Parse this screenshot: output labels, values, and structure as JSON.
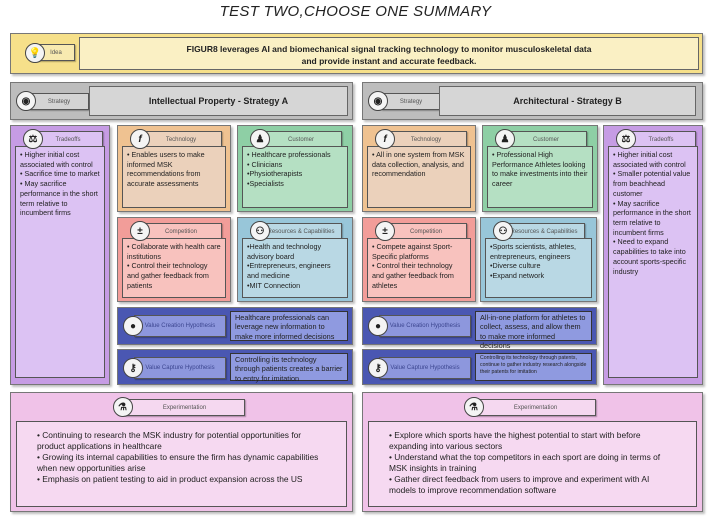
{
  "title": "TEST TWO,CHOOSE ONE SUMMARY",
  "idea": {
    "label": "Idea",
    "text": "FIGUR8 leverages AI and biomechanical signal tracking technology to monitor musculoskeletal data\nand provide instant and accurate feedback."
  },
  "strategy_a": {
    "label": "Strategy",
    "title": "Intellectual Property - Strategy A",
    "tradeoffs": {
      "label": "Tradeoffs",
      "text": "• Higher initial cost associated with control\n• Sacrifice time to market\n• May sacrifice performance in the short term relative to incumbent firms"
    },
    "technology": {
      "label": "Technology",
      "text": "• Enables users to make informed MSK recommendations from accurate assessments"
    },
    "customer": {
      "label": "Customer",
      "text": "• Healthcare professionals\n• Clinicians\n•Physiotherapists\n•Specialists"
    },
    "competition": {
      "label": "Competition",
      "text": "• Collaborate with health care institutions\n• Control their technology and gather feedback from patients"
    },
    "resources": {
      "label": "Resources & Capabilities",
      "text": "•Health and technology advisory board\n•Entrepreneurs, engineers and medicine\n•MIT Connection"
    },
    "value_creation": {
      "label": "Value Creation Hypothesis",
      "text": "Healthcare professionals can leverage new information to make more informed decisions"
    },
    "value_capture": {
      "label": "Value Capture Hypothesis",
      "text": "Controlling its technology through patients creates a barrier to entry for imitation"
    },
    "experimentation": {
      "label": "Experimentation",
      "text": "• Continuing to research the MSK industry for potential opportunities for product applications in healthcare\n• Growing its internal capabilities to ensure the firm has dynamic capabilities when new opportunities arise\n• Emphasis on patient testing to aid in product expansion across the US"
    }
  },
  "strategy_b": {
    "label": "Strategy",
    "title": "Architectural - Strategy B",
    "tradeoffs": {
      "label": "Tradeoffs",
      "text": "• Higher initial cost associated with control\n• Smaller potential value from beachhead customer\n• May sacrifice performance in the short term relative to incumbent firms\n• Need to expand capabilities to take into account sports-specific industry"
    },
    "technology": {
      "label": "Technology",
      "text": "• All in one system from MSK data collection, analysis, and recommendation"
    },
    "customer": {
      "label": "Customer",
      "text": "• Professional High Performance Athletes looking to make investments into their career"
    },
    "competition": {
      "label": "Competition",
      "text": "• Compete against Sport-Specific platforms\n• Control their technology and gather feedback from athletes"
    },
    "resources": {
      "label": "Resources & Capabilities",
      "text": "•Sports scientists, athletes, entrepreneurs, engineers\n•Diverse culture\n•Expand network"
    },
    "value_creation": {
      "label": "Value Creation Hypothesis",
      "text": "All-in-one platform for athletes to collect, assess, and allow them to make more informed decisions"
    },
    "value_capture": {
      "label": "Value Capture Hypothesis",
      "text": "Controlling its technology through patents, continue to gather industry research alongside their patents for imitation"
    },
    "experimentation": {
      "label": "Experimentation",
      "text": "• Explore which sports have the highest potential to start with before expanding into various sectors\n• Understand what the top competitors in each sport are doing in terms of MSK insights in training\n• Gather direct feedback from users to improve and experiment with AI models to improve recommendation software"
    }
  }
}
